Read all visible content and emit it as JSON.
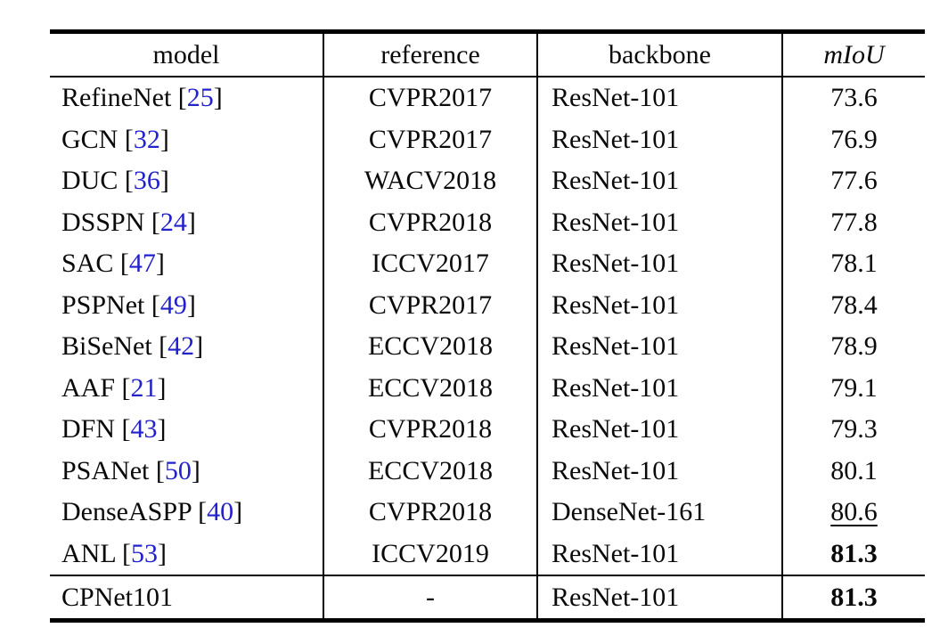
{
  "colors": {
    "text": "#0a0a0a",
    "citation_blue": "#2222cc",
    "border": "#000000",
    "background": "#ffffff"
  },
  "table": {
    "columns": [
      {
        "key": "model",
        "label": "model"
      },
      {
        "key": "reference",
        "label": "reference"
      },
      {
        "key": "backbone",
        "label": "backbone"
      },
      {
        "key": "miou",
        "label": "mIoU"
      }
    ],
    "citation_brackets": {
      "open": "[",
      "close": "]"
    },
    "rows": [
      {
        "model": "RefineNet",
        "cite": "25",
        "reference": "CVPR2017",
        "backbone": "ResNet-101",
        "miou": "73.6",
        "miou_style": "normal"
      },
      {
        "model": "GCN",
        "cite": "32",
        "reference": "CVPR2017",
        "backbone": "ResNet-101",
        "miou": "76.9",
        "miou_style": "normal"
      },
      {
        "model": "DUC",
        "cite": "36",
        "reference": "WACV2018",
        "backbone": "ResNet-101",
        "miou": "77.6",
        "miou_style": "normal"
      },
      {
        "model": "DSSPN",
        "cite": "24",
        "reference": "CVPR2018",
        "backbone": "ResNet-101",
        "miou": "77.8",
        "miou_style": "normal"
      },
      {
        "model": "SAC",
        "cite": "47",
        "reference": "ICCV2017",
        "backbone": "ResNet-101",
        "miou": "78.1",
        "miou_style": "normal"
      },
      {
        "model": "PSPNet",
        "cite": "49",
        "reference": "CVPR2017",
        "backbone": "ResNet-101",
        "miou": "78.4",
        "miou_style": "normal"
      },
      {
        "model": "BiSeNet",
        "cite": "42",
        "reference": "ECCV2018",
        "backbone": "ResNet-101",
        "miou": "78.9",
        "miou_style": "normal"
      },
      {
        "model": "AAF",
        "cite": "21",
        "reference": "ECCV2018",
        "backbone": "ResNet-101",
        "miou": "79.1",
        "miou_style": "normal"
      },
      {
        "model": "DFN",
        "cite": "43",
        "reference": "CVPR2018",
        "backbone": "ResNet-101",
        "miou": "79.3",
        "miou_style": "normal"
      },
      {
        "model": "PSANet",
        "cite": "50",
        "reference": "ECCV2018",
        "backbone": "ResNet-101",
        "miou": "80.1",
        "miou_style": "normal"
      },
      {
        "model": "DenseASPP",
        "cite": "40",
        "reference": "CVPR2018",
        "backbone": "DenseNet-161",
        "miou": "80.6",
        "miou_style": "underline"
      },
      {
        "model": "ANL",
        "cite": "53",
        "reference": "ICCV2019",
        "backbone": "ResNet-101",
        "miou": "81.3",
        "miou_style": "bold"
      }
    ],
    "footer": {
      "model": "CPNet101",
      "cite": "",
      "reference": "-",
      "backbone": "ResNet-101",
      "miou": "81.3",
      "miou_style": "bold"
    }
  }
}
